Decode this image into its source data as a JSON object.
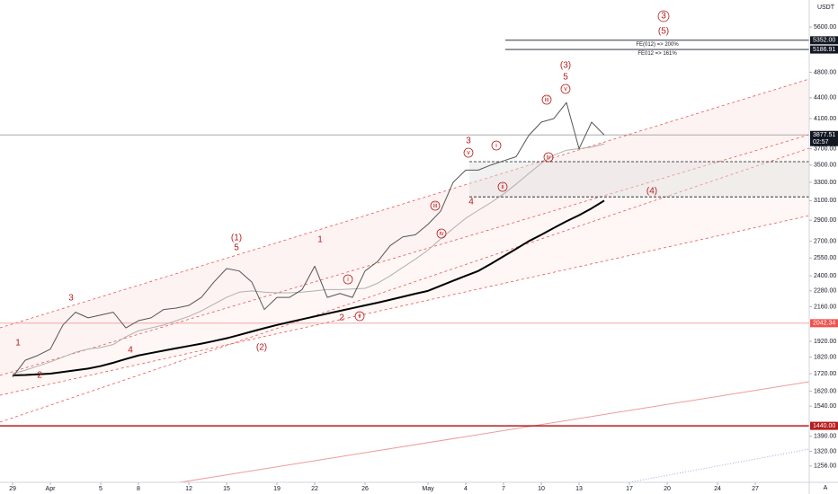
{
  "chart_data": {
    "type": "line",
    "currency": "USDT",
    "log_scale": true,
    "grid": false,
    "x": [
      0,
      1,
      2,
      3,
      4,
      5,
      6,
      7,
      8,
      9,
      10,
      11,
      12,
      13,
      14,
      15,
      16,
      17,
      18,
      19,
      20,
      21,
      22,
      23,
      24,
      25,
      26,
      27,
      28,
      29,
      30,
      31,
      32,
      33,
      34,
      35,
      36,
      37,
      38,
      39,
      40,
      41,
      42,
      43,
      44,
      45,
      46,
      47
    ],
    "series": [
      {
        "color": "#b0b0b0",
        "width": 1,
        "values": [
          1720,
          1740,
          1765,
          1790,
          1820,
          1850,
          1870,
          1880,
          1900,
          1950,
          1990,
          2010,
          2030,
          2060,
          2090,
          2130,
          2180,
          2230,
          2270,
          2280,
          2270,
          2265,
          2265,
          2270,
          2280,
          2290,
          2290,
          2295,
          2300,
          2340,
          2400,
          2470,
          2540,
          2620,
          2720,
          2820,
          2920,
          3000,
          3080,
          3170,
          3280,
          3400,
          3520,
          3620,
          3680,
          3700,
          3720,
          3760
        ]
      },
      {
        "color": "#000000",
        "width": 2,
        "values": [
          1710,
          1712,
          1716,
          1720,
          1730,
          1740,
          1750,
          1765,
          1785,
          1808,
          1830,
          1845,
          1860,
          1875,
          1890,
          1905,
          1922,
          1940,
          1962,
          1985,
          2008,
          2030,
          2050,
          2070,
          2090,
          2110,
          2130,
          2150,
          2170,
          2190,
          2212,
          2235,
          2258,
          2280,
          2320,
          2360,
          2400,
          2440,
          2500,
          2565,
          2630,
          2700,
          2760,
          2825,
          2890,
          2950,
          3020,
          3100
        ]
      },
      {
        "color": "#555555",
        "width": 1,
        "values": [
          1700,
          1800,
          1830,
          1870,
          2030,
          2120,
          2080,
          2100,
          2120,
          2010,
          2060,
          2080,
          2140,
          2150,
          2170,
          2230,
          2350,
          2460,
          2440,
          2350,
          2140,
          2230,
          2230,
          2290,
          2480,
          2230,
          2260,
          2230,
          2440,
          2520,
          2660,
          2740,
          2760,
          2860,
          2990,
          3300,
          3440,
          3440,
          3500,
          3550,
          3600,
          3870,
          4050,
          4100,
          4330,
          3700,
          4050,
          3877.51
        ]
      }
    ],
    "xlim": [
      -1,
      63.2857
    ],
    "xticks": [
      {
        "value": 0,
        "label": "29"
      },
      {
        "value": 3,
        "label": "Apr"
      },
      {
        "value": 7,
        "label": "5"
      },
      {
        "value": 10,
        "label": "8"
      },
      {
        "value": 14,
        "label": "12"
      },
      {
        "value": 17,
        "label": "15"
      },
      {
        "value": 21,
        "label": "19"
      },
      {
        "value": 24,
        "label": "22"
      },
      {
        "value": 28,
        "label": "26"
      },
      {
        "value": 33,
        "label": "May"
      },
      {
        "value": 36,
        "label": "4"
      },
      {
        "value": 39,
        "label": "7"
      },
      {
        "value": 42,
        "label": "10"
      },
      {
        "value": 45,
        "label": "13"
      },
      {
        "value": 49,
        "label": "17"
      },
      {
        "value": 52,
        "label": "20"
      },
      {
        "value": 56,
        "label": "24"
      },
      {
        "value": 59,
        "label": "27"
      }
    ],
    "ylim": [
      1188,
      6139
    ],
    "yticks": [
      {
        "value": 5600,
        "label": "5600.00"
      },
      {
        "value": 4800,
        "label": "4800.00"
      },
      {
        "value": 4400,
        "label": "4400.00"
      },
      {
        "value": 4100,
        "label": "4100.00"
      },
      {
        "value": 3700,
        "label": "3700.00"
      },
      {
        "value": 3500,
        "label": "3500.00"
      },
      {
        "value": 3300,
        "label": "3300.00"
      },
      {
        "value": 3100,
        "label": "3100.00"
      },
      {
        "value": 2900,
        "label": "2900.00"
      },
      {
        "value": 2700,
        "label": "2700.00"
      },
      {
        "value": 2550,
        "label": "2550.00"
      },
      {
        "value": 2400,
        "label": "2400.00"
      },
      {
        "value": 2280,
        "label": "2280.00"
      },
      {
        "value": 2160,
        "label": "2160.00"
      },
      {
        "value": 1920,
        "label": "1920.00"
      },
      {
        "value": 1820,
        "label": "1820.00"
      },
      {
        "value": 1720,
        "label": "1720.00"
      },
      {
        "value": 1620,
        "label": "1620.00"
      },
      {
        "value": 1540,
        "label": "1540.00"
      },
      {
        "value": 1390,
        "label": "1390.00"
      },
      {
        "value": 1320,
        "label": "1320.00"
      },
      {
        "value": 1256,
        "label": "1256.00"
      }
    ],
    "price_lines": [
      {
        "value": 5352,
        "label": "5352.00",
        "color": "#131722",
        "text": "FE(012) => 200%"
      },
      {
        "value": 5186.91,
        "color": "#131722",
        "text": "FE012 => 161%"
      },
      {
        "value": 3877.51,
        "color": "#9e9e9e",
        "box": "#131722",
        "time": "02:57"
      },
      {
        "value": 2042.34,
        "color": "#ef9a9a",
        "box": "#ef5350"
      },
      {
        "value": 1440,
        "label": "1440.00",
        "color": "#b71c1c",
        "box": "#b71c1c"
      }
    ],
    "zone": {
      "top": 3540,
      "bottom": 3140
    },
    "annotations": [
      "1",
      "2",
      "3",
      "4",
      "(1)",
      "5",
      "(2)",
      "1",
      "2",
      "i",
      "ii",
      "iii",
      "iv",
      "3",
      "v",
      "4",
      "i",
      "ii",
      "iii",
      "iv",
      "(3)",
      "5",
      "v",
      "(4)",
      "3",
      "(5)"
    ],
    "corner_label": "A"
  }
}
